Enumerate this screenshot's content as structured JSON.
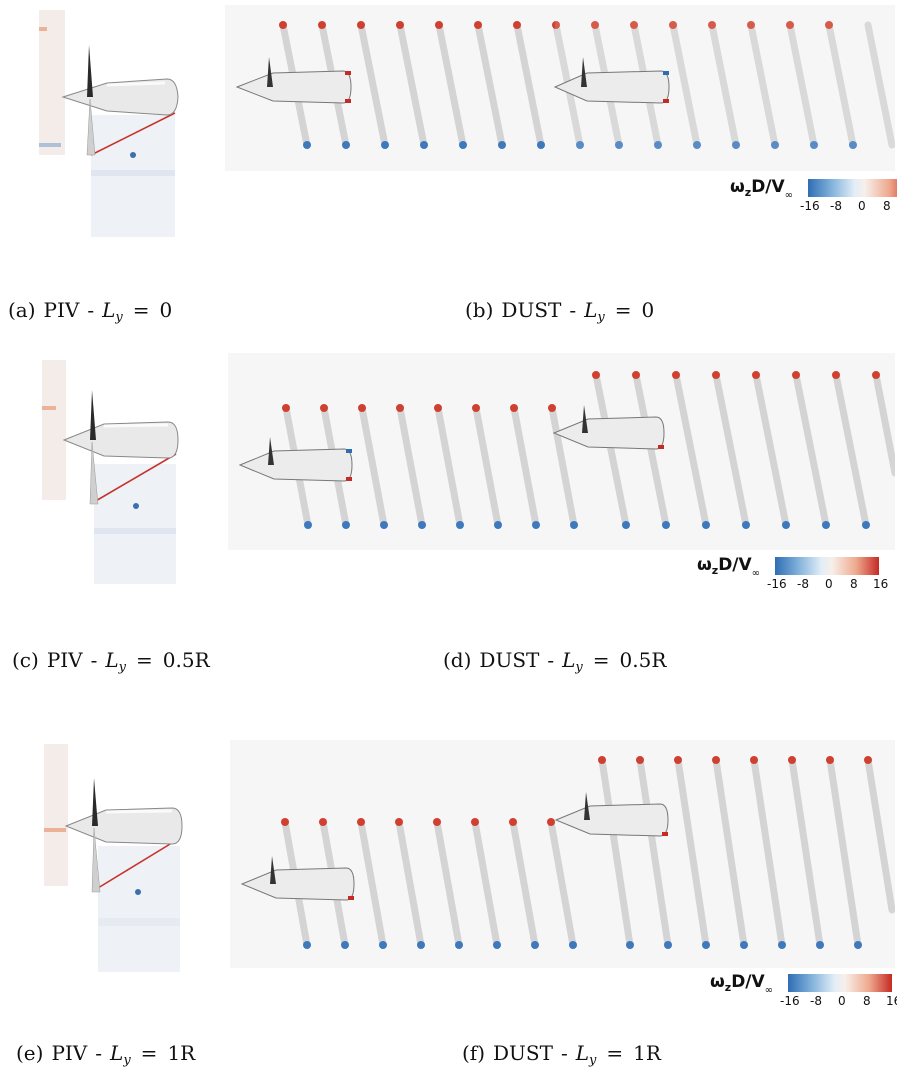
{
  "captions": [
    {
      "tag": "(a)",
      "method": "PIV",
      "sep": "-",
      "var": "L",
      "sub": "y",
      "eq": "=",
      "value": "0"
    },
    {
      "tag": "(b)",
      "method": "DUST",
      "sep": "-",
      "var": "L",
      "sub": "y",
      "eq": "=",
      "value": "0"
    },
    {
      "tag": "(c)",
      "method": "PIV",
      "sep": "-",
      "var": "L",
      "sub": "y",
      "eq": "=",
      "value": "0.5R"
    },
    {
      "tag": "(d)",
      "method": "DUST",
      "sep": "-",
      "var": "L",
      "sub": "y",
      "eq": "=",
      "value": "0.5R"
    },
    {
      "tag": "(e)",
      "method": "PIV",
      "sep": "-",
      "var": "L",
      "sub": "y",
      "eq": "=",
      "value": "1R"
    },
    {
      "tag": "(f)",
      "method": "DUST",
      "sep": "-",
      "var": "L",
      "sub": "y",
      "eq": "=",
      "value": "1R"
    }
  ],
  "colorbar": {
    "title_main": "ω",
    "title_sub": "z",
    "title_mid": "D/V",
    "title_sub2": "∞",
    "ticks": [
      "-16",
      "-8",
      "0",
      "8",
      "16"
    ],
    "colors": {
      "negative": "#2f6db3",
      "neutral": "#f4f4f4",
      "positive": "#c62a24"
    }
  }
}
